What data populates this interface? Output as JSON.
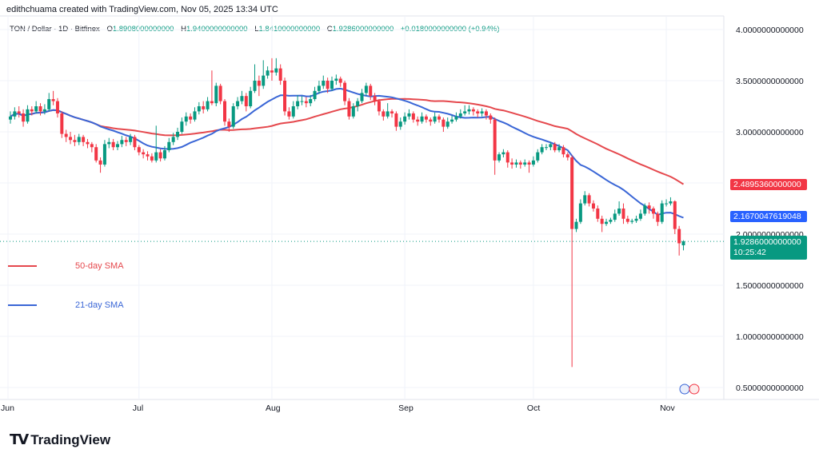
{
  "credit": "edithchuama created with TradingView.com, Nov 05, 2025 13:34 UTC",
  "header": {
    "symbol": "TON / Dollar · 1D · Bitfinex",
    "open_label": "O",
    "open": "1.8908000000000",
    "high_label": "H",
    "high": "1.9400000000000",
    "low_label": "L",
    "low": "1.8410000000000",
    "close_label": "C",
    "close": "1.9286000000000",
    "change": "+0.0180000000000 (+0.94%)"
  },
  "legend": [
    {
      "name": "50-day SMA",
      "color": "#e5484d"
    },
    {
      "name": "21-day SMA",
      "color": "#3a66d6"
    }
  ],
  "price_labels": {
    "sma50": "2.4895360000000",
    "sma21": "2.1670047619048",
    "last": "1.9286000000000",
    "countdown": "10:25:42"
  },
  "logo": "TradingView",
  "colors": {
    "up": "#089981",
    "down": "#f23645",
    "sma50": "#e5484d",
    "sma21": "#3a66d6"
  },
  "chart_data": {
    "type": "candlestick",
    "ylim": [
      0.4,
      4.1
    ],
    "y_ticks": [
      "4.0000000000000",
      "3.5000000000000",
      "3.0000000000000",
      "2.0000000000000",
      "1.5000000000000",
      "1.0000000000000",
      "0.5000000000000"
    ],
    "y_tick_values": [
      4.0,
      3.5,
      3.0,
      2.0,
      1.5,
      1.0,
      0.5
    ],
    "x_ticks": [
      {
        "label": "Jun",
        "date": "2025-06-01"
      },
      {
        "label": "Jul",
        "date": "2025-07-01"
      },
      {
        "label": "Aug",
        "date": "2025-08-01"
      },
      {
        "label": "Sep",
        "date": "2025-09-01"
      },
      {
        "label": "Oct",
        "date": "2025-10-01"
      },
      {
        "label": "Nov",
        "date": "2025-11-01"
      }
    ],
    "grid": true,
    "sma_periods": [
      50,
      21
    ],
    "candles": [
      [
        "2025-06-01",
        3.12,
        3.2,
        3.08,
        3.15
      ],
      [
        "2025-06-02",
        3.15,
        3.24,
        3.12,
        3.2
      ],
      [
        "2025-06-03",
        3.2,
        3.25,
        3.14,
        3.18
      ],
      [
        "2025-06-04",
        3.18,
        3.22,
        3.05,
        3.1
      ],
      [
        "2025-06-05",
        3.1,
        3.26,
        3.08,
        3.22
      ],
      [
        "2025-06-06",
        3.22,
        3.25,
        3.16,
        3.2
      ],
      [
        "2025-06-07",
        3.2,
        3.3,
        3.18,
        3.25
      ],
      [
        "2025-06-08",
        3.25,
        3.28,
        3.16,
        3.2
      ],
      [
        "2025-06-09",
        3.2,
        3.27,
        3.17,
        3.22
      ],
      [
        "2025-06-10",
        3.22,
        3.38,
        3.2,
        3.32
      ],
      [
        "2025-06-11",
        3.32,
        3.4,
        3.26,
        3.3
      ],
      [
        "2025-06-12",
        3.3,
        3.33,
        3.14,
        3.18
      ],
      [
        "2025-06-13",
        3.18,
        3.2,
        2.94,
        2.98
      ],
      [
        "2025-06-14",
        2.98,
        3.02,
        2.9,
        2.95
      ],
      [
        "2025-06-15",
        2.95,
        3.0,
        2.88,
        2.92
      ],
      [
        "2025-06-16",
        2.92,
        2.97,
        2.86,
        2.9
      ],
      [
        "2025-06-17",
        2.9,
        2.98,
        2.87,
        2.95
      ],
      [
        "2025-06-18",
        2.95,
        2.97,
        2.86,
        2.9
      ],
      [
        "2025-06-19",
        2.9,
        2.93,
        2.84,
        2.88
      ],
      [
        "2025-06-20",
        2.88,
        2.9,
        2.8,
        2.85
      ],
      [
        "2025-06-21",
        2.85,
        2.88,
        2.7,
        2.72
      ],
      [
        "2025-06-22",
        2.72,
        2.75,
        2.6,
        2.68
      ],
      [
        "2025-06-23",
        2.68,
        2.92,
        2.66,
        2.88
      ],
      [
        "2025-06-24",
        2.88,
        2.94,
        2.84,
        2.9
      ],
      [
        "2025-06-25",
        2.9,
        2.93,
        2.82,
        2.85
      ],
      [
        "2025-06-26",
        2.85,
        2.91,
        2.82,
        2.88
      ],
      [
        "2025-06-27",
        2.88,
        2.96,
        2.85,
        2.92
      ],
      [
        "2025-06-28",
        2.92,
        2.95,
        2.86,
        2.9
      ],
      [
        "2025-06-29",
        2.9,
        2.98,
        2.87,
        2.95
      ],
      [
        "2025-06-30",
        2.95,
        2.97,
        2.82,
        2.85
      ],
      [
        "2025-07-01",
        2.85,
        2.87,
        2.77,
        2.8
      ],
      [
        "2025-07-02",
        2.8,
        2.83,
        2.74,
        2.78
      ],
      [
        "2025-07-03",
        2.78,
        2.81,
        2.72,
        2.76
      ],
      [
        "2025-07-04",
        2.76,
        2.79,
        2.7,
        2.72
      ],
      [
        "2025-07-05",
        2.72,
        3.06,
        2.7,
        2.8
      ],
      [
        "2025-07-06",
        2.8,
        2.83,
        2.71,
        2.74
      ],
      [
        "2025-07-07",
        2.74,
        2.86,
        2.72,
        2.82
      ],
      [
        "2025-07-08",
        2.82,
        2.94,
        2.8,
        2.9
      ],
      [
        "2025-07-09",
        2.9,
        2.99,
        2.87,
        2.95
      ],
      [
        "2025-07-10",
        2.95,
        3.04,
        2.92,
        3.0
      ],
      [
        "2025-07-11",
        3.0,
        3.14,
        2.98,
        3.1
      ],
      [
        "2025-07-12",
        3.1,
        3.19,
        3.06,
        3.15
      ],
      [
        "2025-07-13",
        3.15,
        3.18,
        3.08,
        3.12
      ],
      [
        "2025-07-14",
        3.12,
        3.24,
        3.1,
        3.2
      ],
      [
        "2025-07-15",
        3.2,
        3.29,
        3.17,
        3.25
      ],
      [
        "2025-07-16",
        3.25,
        3.3,
        3.18,
        3.22
      ],
      [
        "2025-07-17",
        3.22,
        3.34,
        3.2,
        3.3
      ],
      [
        "2025-07-18",
        3.3,
        3.6,
        3.26,
        3.28
      ],
      [
        "2025-07-19",
        3.28,
        3.48,
        3.25,
        3.45
      ],
      [
        "2025-07-20",
        3.45,
        3.47,
        3.27,
        3.3
      ],
      [
        "2025-07-21",
        3.3,
        3.32,
        3.06,
        3.1
      ],
      [
        "2025-07-22",
        3.1,
        3.13,
        3.0,
        3.05
      ],
      [
        "2025-07-23",
        3.05,
        3.28,
        3.03,
        3.25
      ],
      [
        "2025-07-24",
        3.25,
        3.34,
        3.22,
        3.3
      ],
      [
        "2025-07-25",
        3.3,
        3.4,
        3.27,
        3.35
      ],
      [
        "2025-07-26",
        3.35,
        3.38,
        3.2,
        3.25
      ],
      [
        "2025-07-27",
        3.25,
        3.44,
        3.23,
        3.4
      ],
      [
        "2025-07-28",
        3.4,
        3.66,
        3.38,
        3.5
      ],
      [
        "2025-07-29",
        3.5,
        3.55,
        3.35,
        3.45
      ],
      [
        "2025-07-30",
        3.45,
        3.7,
        3.42,
        3.55
      ],
      [
        "2025-07-31",
        3.55,
        3.64,
        3.52,
        3.6
      ],
      [
        "2025-08-01",
        3.6,
        3.72,
        3.5,
        3.58
      ],
      [
        "2025-08-02",
        3.58,
        3.72,
        3.55,
        3.62
      ],
      [
        "2025-08-03",
        3.62,
        3.66,
        3.46,
        3.5
      ],
      [
        "2025-08-04",
        3.5,
        3.53,
        3.16,
        3.2
      ],
      [
        "2025-08-05",
        3.2,
        3.24,
        3.12,
        3.15
      ],
      [
        "2025-08-06",
        3.15,
        3.3,
        3.13,
        3.25
      ],
      [
        "2025-08-07",
        3.25,
        3.36,
        3.22,
        3.3
      ],
      [
        "2025-08-08",
        3.3,
        3.35,
        3.26,
        3.3
      ],
      [
        "2025-08-09",
        3.3,
        3.34,
        3.24,
        3.28
      ],
      [
        "2025-08-10",
        3.28,
        3.36,
        3.25,
        3.32
      ],
      [
        "2025-08-11",
        3.32,
        3.44,
        3.3,
        3.4
      ],
      [
        "2025-08-12",
        3.4,
        3.5,
        3.37,
        3.45
      ],
      [
        "2025-08-13",
        3.45,
        3.55,
        3.42,
        3.5
      ],
      [
        "2025-08-14",
        3.5,
        3.53,
        3.38,
        3.42
      ],
      [
        "2025-08-15",
        3.42,
        3.54,
        3.4,
        3.5
      ],
      [
        "2025-08-16",
        3.5,
        3.56,
        3.46,
        3.52
      ],
      [
        "2025-08-17",
        3.52,
        3.54,
        3.44,
        3.48
      ],
      [
        "2025-08-18",
        3.48,
        3.5,
        3.26,
        3.3
      ],
      [
        "2025-08-19",
        3.3,
        3.33,
        3.12,
        3.15
      ],
      [
        "2025-08-20",
        3.15,
        3.28,
        3.13,
        3.25
      ],
      [
        "2025-08-21",
        3.25,
        3.33,
        3.2,
        3.3
      ],
      [
        "2025-08-22",
        3.3,
        3.42,
        3.28,
        3.38
      ],
      [
        "2025-08-23",
        3.38,
        3.48,
        3.35,
        3.45
      ],
      [
        "2025-08-24",
        3.45,
        3.47,
        3.31,
        3.35
      ],
      [
        "2025-08-25",
        3.35,
        3.38,
        3.26,
        3.3
      ],
      [
        "2025-08-26",
        3.3,
        3.32,
        3.16,
        3.2
      ],
      [
        "2025-08-27",
        3.2,
        3.22,
        3.11,
        3.15
      ],
      [
        "2025-08-28",
        3.15,
        3.28,
        3.13,
        3.2
      ],
      [
        "2025-08-29",
        3.2,
        3.22,
        3.14,
        3.18
      ],
      [
        "2025-08-30",
        3.18,
        3.2,
        3.01,
        3.05
      ],
      [
        "2025-08-31",
        3.05,
        3.14,
        3.02,
        3.1
      ],
      [
        "2025-09-01",
        3.1,
        3.19,
        3.07,
        3.15
      ],
      [
        "2025-09-02",
        3.15,
        3.22,
        3.12,
        3.18
      ],
      [
        "2025-09-03",
        3.18,
        3.2,
        3.09,
        3.12
      ],
      [
        "2025-09-04",
        3.12,
        3.15,
        3.06,
        3.1
      ],
      [
        "2025-09-05",
        3.1,
        3.19,
        3.08,
        3.15
      ],
      [
        "2025-09-06",
        3.15,
        3.17,
        3.09,
        3.12
      ],
      [
        "2025-09-07",
        3.12,
        3.14,
        3.06,
        3.1
      ],
      [
        "2025-09-08",
        3.1,
        3.19,
        3.08,
        3.15
      ],
      [
        "2025-09-09",
        3.15,
        3.17,
        3.09,
        3.12
      ],
      [
        "2025-09-10",
        3.12,
        3.14,
        3.0,
        3.05
      ],
      [
        "2025-09-11",
        3.05,
        3.14,
        3.03,
        3.1
      ],
      [
        "2025-09-12",
        3.1,
        3.16,
        3.08,
        3.12
      ],
      [
        "2025-09-13",
        3.12,
        3.19,
        3.1,
        3.15
      ],
      [
        "2025-09-14",
        3.15,
        3.22,
        3.13,
        3.18
      ],
      [
        "2025-09-15",
        3.18,
        3.26,
        3.16,
        3.2
      ],
      [
        "2025-09-16",
        3.2,
        3.26,
        3.17,
        3.22
      ],
      [
        "2025-09-17",
        3.22,
        3.24,
        3.16,
        3.2
      ],
      [
        "2025-09-18",
        3.2,
        3.22,
        3.14,
        3.18
      ],
      [
        "2025-09-19",
        3.18,
        3.23,
        3.15,
        3.2
      ],
      [
        "2025-09-20",
        3.2,
        3.22,
        3.12,
        3.16
      ],
      [
        "2025-09-21",
        3.16,
        3.18,
        3.08,
        3.12
      ],
      [
        "2025-09-22",
        3.12,
        3.14,
        2.58,
        2.72
      ],
      [
        "2025-09-23",
        2.72,
        2.8,
        2.7,
        2.78
      ],
      [
        "2025-09-24",
        2.78,
        2.83,
        2.75,
        2.8
      ],
      [
        "2025-09-25",
        2.8,
        2.82,
        2.65,
        2.7
      ],
      [
        "2025-09-26",
        2.7,
        2.74,
        2.64,
        2.68
      ],
      [
        "2025-09-27",
        2.68,
        2.73,
        2.65,
        2.7
      ],
      [
        "2025-09-28",
        2.7,
        2.72,
        2.64,
        2.68
      ],
      [
        "2025-09-29",
        2.68,
        2.73,
        2.66,
        2.7
      ],
      [
        "2025-09-30",
        2.7,
        2.72,
        2.6,
        2.68
      ],
      [
        "2025-10-01",
        2.68,
        2.76,
        2.66,
        2.72
      ],
      [
        "2025-10-02",
        2.72,
        2.83,
        2.7,
        2.8
      ],
      [
        "2025-10-03",
        2.8,
        2.88,
        2.78,
        2.85
      ],
      [
        "2025-10-04",
        2.85,
        2.88,
        2.82,
        2.85
      ],
      [
        "2025-10-05",
        2.85,
        2.9,
        2.82,
        2.88
      ],
      [
        "2025-10-06",
        2.88,
        2.9,
        2.8,
        2.82
      ],
      [
        "2025-10-07",
        2.82,
        2.88,
        2.8,
        2.85
      ],
      [
        "2025-10-08",
        2.85,
        2.87,
        2.75,
        2.78
      ],
      [
        "2025-10-09",
        2.78,
        2.8,
        2.72,
        2.75
      ],
      [
        "2025-10-10",
        2.75,
        2.77,
        0.7,
        2.05
      ],
      [
        "2025-10-11",
        2.05,
        2.15,
        2.02,
        2.12
      ],
      [
        "2025-10-12",
        2.12,
        2.34,
        2.1,
        2.3
      ],
      [
        "2025-10-13",
        2.3,
        2.42,
        2.28,
        2.38
      ],
      [
        "2025-10-14",
        2.38,
        2.4,
        2.27,
        2.3
      ],
      [
        "2025-10-15",
        2.3,
        2.33,
        2.22,
        2.25
      ],
      [
        "2025-10-16",
        2.25,
        2.28,
        2.12,
        2.15
      ],
      [
        "2025-10-17",
        2.15,
        2.18,
        2.02,
        2.1
      ],
      [
        "2025-10-18",
        2.1,
        2.15,
        2.08,
        2.12
      ],
      [
        "2025-10-19",
        2.12,
        2.16,
        2.1,
        2.14
      ],
      [
        "2025-10-20",
        2.14,
        2.24,
        2.12,
        2.2
      ],
      [
        "2025-10-21",
        2.2,
        2.32,
        2.18,
        2.25
      ],
      [
        "2025-10-22",
        2.25,
        2.3,
        2.1,
        2.15
      ],
      [
        "2025-10-23",
        2.15,
        2.18,
        2.1,
        2.12
      ],
      [
        "2025-10-24",
        2.12,
        2.15,
        2.1,
        2.13
      ],
      [
        "2025-10-25",
        2.13,
        2.18,
        2.11,
        2.15
      ],
      [
        "2025-10-26",
        2.15,
        2.24,
        2.13,
        2.2
      ],
      [
        "2025-10-27",
        2.2,
        2.3,
        2.18,
        2.28
      ],
      [
        "2025-10-28",
        2.28,
        2.31,
        2.2,
        2.25
      ],
      [
        "2025-10-29",
        2.25,
        2.27,
        2.15,
        2.2
      ],
      [
        "2025-10-30",
        2.2,
        2.22,
        2.08,
        2.12
      ],
      [
        "2025-10-31",
        2.12,
        2.33,
        2.1,
        2.3
      ],
      [
        "2025-11-01",
        2.3,
        2.34,
        2.27,
        2.3
      ],
      [
        "2025-11-02",
        2.3,
        2.36,
        2.28,
        2.32
      ],
      [
        "2025-11-03",
        2.32,
        2.33,
        2.0,
        2.05
      ],
      [
        "2025-11-04",
        2.05,
        2.08,
        1.79,
        1.91
      ],
      [
        "2025-11-05",
        1.8908,
        1.94,
        1.841,
        1.9286
      ]
    ]
  }
}
